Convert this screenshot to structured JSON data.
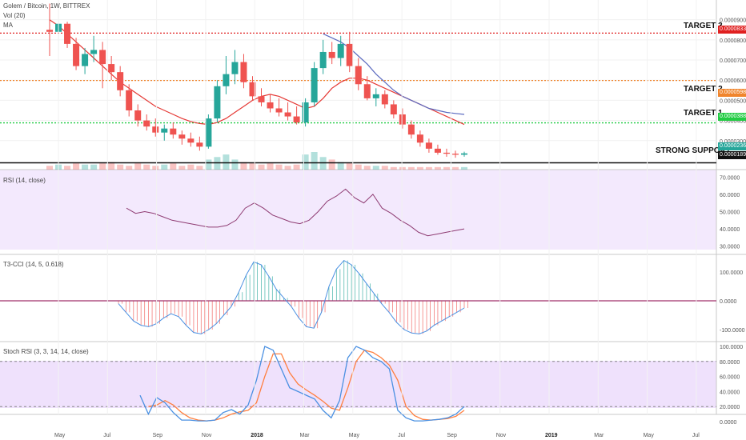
{
  "header": {
    "symbol_title": "Golem / Bitcoin, 1W, BITTREX",
    "vol_label": "Vol (20)",
    "ma_label": "MA"
  },
  "targets": [
    {
      "label": "TARGET 3",
      "value": "0.00008337",
      "color": "#e02020"
    },
    {
      "label": "TARGET 2",
      "value": "0.00005984",
      "color": "#f0852d"
    },
    {
      "label": "TARGET 1",
      "value": "0.00003883",
      "color": "#22cc44"
    }
  ],
  "support": {
    "label": "STRONG SUPPORT",
    "value": "0.00001899",
    "color": "#111111"
  },
  "current_price": {
    "value": "0.00002368",
    "color": "#26a69a"
  },
  "price_axis_ticks": [
    "0.00009000",
    "0.00008000",
    "0.00007000",
    "0.00006000",
    "0.00005000",
    "0.00004000",
    "0.00003000"
  ],
  "panes": {
    "rsi": {
      "label": "RSI (14, close)",
      "ticks": [
        "70.0000",
        "60.0000",
        "50.0000",
        "40.0000",
        "30.0000"
      ]
    },
    "cci": {
      "label": "T3-CCI (14, 5, 0.618)",
      "ticks": [
        "100.0000",
        "0.0000",
        "-100.0000"
      ]
    },
    "stoch": {
      "label": "Stoch RSI (3, 3, 14, 14, close)",
      "ticks": [
        "100.0000",
        "80.0000",
        "60.0000",
        "40.0000",
        "20.0000",
        "0.0000"
      ]
    }
  },
  "time_axis": [
    {
      "label": "May",
      "bold": false
    },
    {
      "label": "Jul",
      "bold": false
    },
    {
      "label": "Sep",
      "bold": false
    },
    {
      "label": "Nov",
      "bold": false
    },
    {
      "label": "2018",
      "bold": true
    },
    {
      "label": "Mar",
      "bold": false
    },
    {
      "label": "May",
      "bold": false
    },
    {
      "label": "Jul",
      "bold": false
    },
    {
      "label": "Sep",
      "bold": false
    },
    {
      "label": "Nov",
      "bold": false
    },
    {
      "label": "2019",
      "bold": true
    },
    {
      "label": "Mar",
      "bold": false
    },
    {
      "label": "May",
      "bold": false
    },
    {
      "label": "Jul",
      "bold": false
    }
  ],
  "colors": {
    "up": "#26a69a",
    "down": "#ef5350",
    "ma_red": "#e53935",
    "ma_blue": "#5c6bc0",
    "rsi_line": "#8e3b72",
    "band": "#e9d7fb",
    "stoch_k": "#4a90e2",
    "stoch_d": "#ff7f3f"
  },
  "chart_data": [
    {
      "type": "candlestick",
      "title": "Golem / Bitcoin, 1W, BITTREX",
      "x_start": "2017-04",
      "candles": [
        [
          8500,
          9800,
          7200,
          8400
        ],
        [
          8400,
          9000,
          7500,
          8800
        ],
        [
          8800,
          8900,
          7600,
          7800
        ],
        [
          7800,
          8100,
          6500,
          6700
        ],
        [
          6700,
          7600,
          6300,
          7300
        ],
        [
          7300,
          8200,
          6900,
          7500
        ],
        [
          7500,
          7900,
          5600,
          6800
        ],
        [
          6800,
          7200,
          6000,
          6400
        ],
        [
          6400,
          6700,
          5200,
          5500
        ],
        [
          5500,
          5800,
          4200,
          4500
        ],
        [
          4500,
          4800,
          3700,
          4000
        ],
        [
          4000,
          4300,
          3500,
          3700
        ],
        [
          3700,
          4100,
          3200,
          3400
        ],
        [
          3400,
          3800,
          3000,
          3600
        ],
        [
          3600,
          3900,
          3100,
          3300
        ],
        [
          3300,
          3500,
          2800,
          3100
        ],
        [
          3100,
          3400,
          2700,
          2900
        ],
        [
          2900,
          3200,
          2500,
          2700
        ],
        [
          2700,
          4300,
          2600,
          4100
        ],
        [
          4100,
          6000,
          3900,
          5700
        ],
        [
          5700,
          7200,
          5300,
          6300
        ],
        [
          6300,
          7500,
          5800,
          6900
        ],
        [
          6900,
          7300,
          5600,
          5900
        ],
        [
          5900,
          6200,
          5000,
          5200
        ],
        [
          5200,
          5600,
          4700,
          4900
        ],
        [
          4900,
          5300,
          4400,
          4600
        ],
        [
          4600,
          5100,
          4200,
          4400
        ],
        [
          4400,
          4900,
          4000,
          4200
        ],
        [
          4200,
          4700,
          3800,
          3900
        ],
        [
          3900,
          5100,
          3700,
          4900
        ],
        [
          4900,
          6900,
          4700,
          6600
        ],
        [
          6600,
          8000,
          6300,
          7400
        ],
        [
          7400,
          7900,
          6800,
          7100
        ],
        [
          7100,
          8200,
          6700,
          7800
        ],
        [
          7800,
          8400,
          6400,
          6700
        ],
        [
          6700,
          7100,
          5500,
          5800
        ],
        [
          5800,
          6200,
          5000,
          5100
        ],
        [
          5100,
          5600,
          4700,
          5300
        ],
        [
          5300,
          5500,
          4600,
          4800
        ],
        [
          4800,
          5000,
          4100,
          4300
        ],
        [
          4300,
          4600,
          3600,
          3800
        ],
        [
          3800,
          4000,
          3100,
          3300
        ],
        [
          3300,
          3500,
          2700,
          2900
        ],
        [
          2900,
          3100,
          2400,
          2600
        ],
        [
          2600,
          2800,
          2300,
          2400
        ],
        [
          2400,
          2600,
          2200,
          2350
        ],
        [
          2350,
          2500,
          2150,
          2300
        ],
        [
          2300,
          2450,
          2200,
          2368
        ]
      ],
      "ma_red": [
        9000,
        8700,
        8300,
        7900,
        7500,
        7100,
        6700,
        6300,
        5900,
        5600,
        5300,
        5000,
        4700,
        4500,
        4300,
        4100,
        3950,
        3850,
        3800,
        3900,
        4100,
        4400,
        4700,
        5000,
        5200,
        5300,
        5200,
        5000,
        4800,
        4600,
        4700,
        5100,
        5600,
        5900,
        6100,
        6100,
        6000,
        5800,
        5600,
        5400,
        5200,
        5000,
        4800,
        4600,
        4400,
        4200,
        4000,
        3800
      ],
      "ma_blue": [
        null,
        null,
        null,
        null,
        null,
        null,
        null,
        null,
        null,
        null,
        null,
        null,
        null,
        null,
        null,
        null,
        null,
        null,
        null,
        null,
        null,
        null,
        null,
        null,
        null,
        null,
        null,
        null,
        null,
        null,
        null,
        8300,
        8100,
        7900,
        7600,
        7200,
        6800,
        6300,
        5900,
        5500,
        5200,
        5000,
        4800,
        4600,
        4500,
        4400,
        4350,
        4300
      ],
      "volume": [
        3,
        4,
        3,
        5,
        4,
        4,
        5,
        6,
        4,
        3,
        5,
        4,
        3,
        4,
        5,
        3,
        4,
        3,
        8,
        10,
        12,
        8,
        6,
        5,
        4,
        5,
        4,
        3,
        4,
        12,
        14,
        10,
        8,
        6,
        5,
        4,
        3,
        3,
        3,
        2,
        2,
        2,
        2,
        2,
        2,
        2,
        2,
        2
      ]
    },
    {
      "type": "line",
      "title": "RSI (14, close)",
      "ylim": [
        30,
        70
      ],
      "values": [
        52,
        49,
        50,
        49,
        47,
        45,
        44,
        43,
        42,
        41,
        41,
        42,
        45,
        52,
        55,
        52,
        48,
        46,
        44,
        43,
        45,
        50,
        56,
        59,
        63,
        58,
        55,
        60,
        52,
        49,
        45,
        42,
        38,
        36,
        37,
        38,
        39,
        40
      ]
    },
    {
      "type": "bar",
      "title": "T3-CCI (14, 5, 0.618)",
      "ylim": [
        -150,
        150
      ],
      "values": [
        -10,
        -40,
        -70,
        -85,
        -90,
        -80,
        -60,
        -45,
        -55,
        -85,
        -110,
        -115,
        -100,
        -80,
        -50,
        -20,
        30,
        90,
        135,
        125,
        85,
        40,
        10,
        -20,
        -60,
        -90,
        -95,
        -40,
        50,
        110,
        140,
        125,
        95,
        60,
        25,
        -10,
        -40,
        -75,
        -100,
        -112,
        -115,
        -105,
        -85,
        -70,
        -55,
        -40,
        -25
      ]
    },
    {
      "type": "line",
      "title": "Stoch RSI (3, 3, 14, 14, close)",
      "ylim": [
        0,
        100
      ],
      "series": [
        {
          "values": [
            35,
            10,
            32,
            25,
            12,
            2,
            2,
            1,
            1,
            2,
            12,
            16,
            10,
            22,
            55,
            100,
            95,
            70,
            45,
            40,
            35,
            30,
            15,
            5,
            28,
            85,
            100,
            95,
            85,
            80,
            70,
            15,
            5,
            1,
            1,
            2,
            3,
            5,
            10,
            20
          ]
        },
        {
          "values": [
            null,
            20,
            22,
            28,
            22,
            12,
            5,
            2,
            1,
            2,
            5,
            10,
            13,
            15,
            25,
            60,
            90,
            90,
            65,
            50,
            42,
            35,
            27,
            18,
            15,
            45,
            80,
            95,
            92,
            85,
            75,
            55,
            20,
            8,
            3,
            2,
            3,
            4,
            7,
            15
          ]
        }
      ]
    }
  ]
}
